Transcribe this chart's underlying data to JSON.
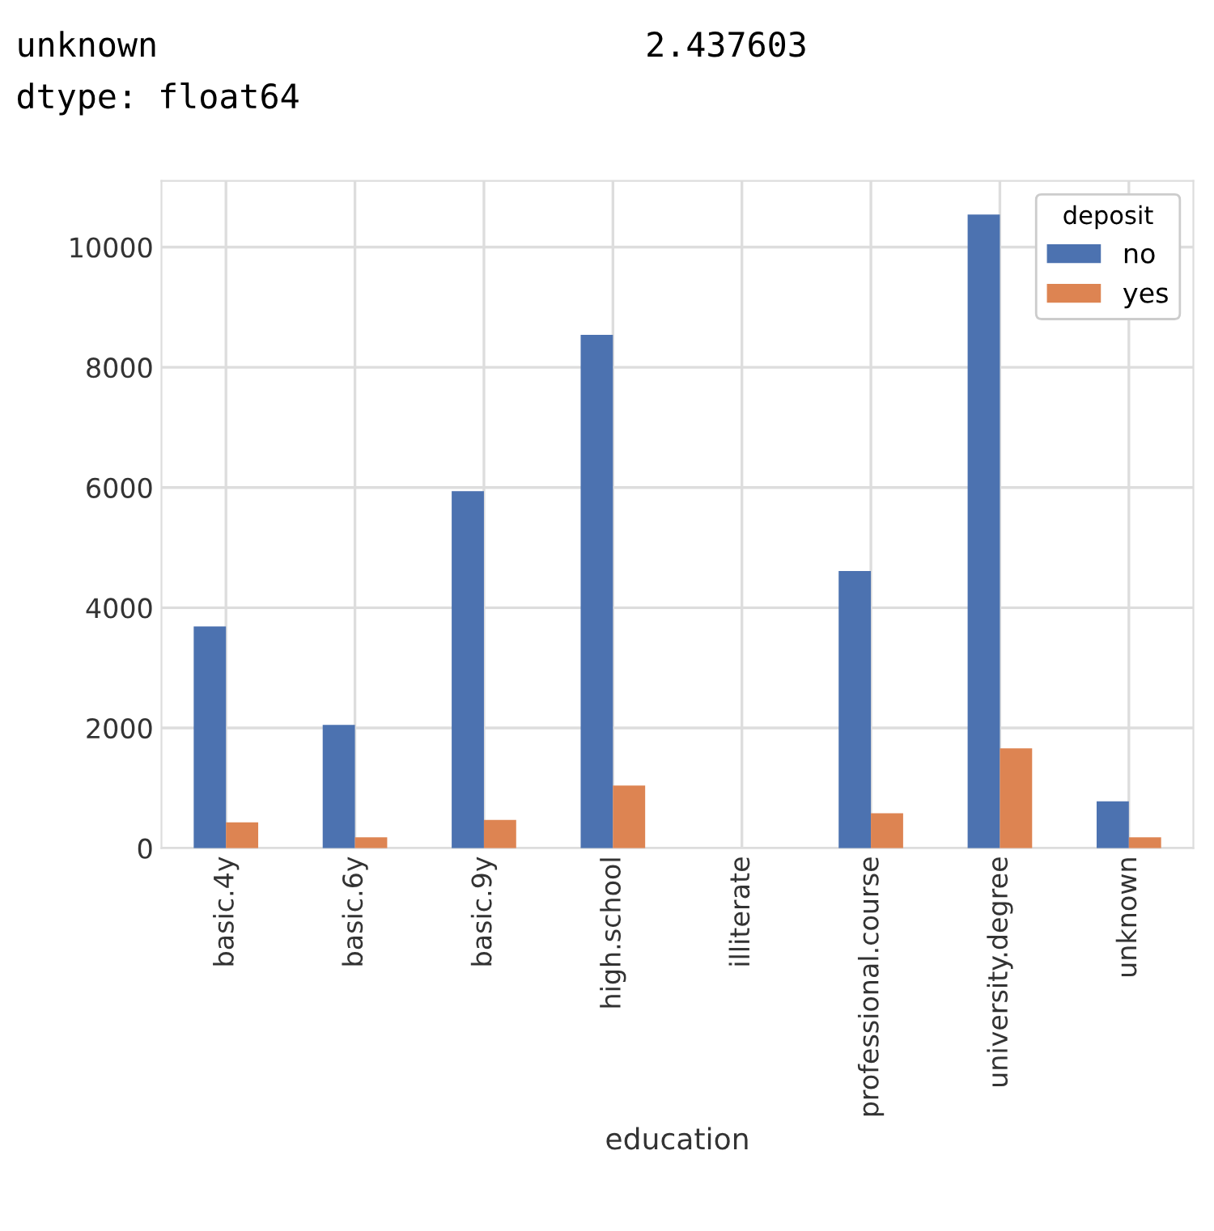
{
  "chart_data": {
    "type": "bar",
    "xlabel": "education",
    "legend_title": "deposit",
    "categories": [
      "basic.4y",
      "basic.6y",
      "basic.9y",
      "high.school",
      "illiterate",
      "professional.course",
      "university.degree",
      "unknown"
    ],
    "series": [
      {
        "name": "no",
        "color": "#4c72b0",
        "values": [
          3690,
          2050,
          5940,
          8540,
          null,
          4610,
          10540,
          780
        ]
      },
      {
        "name": "yes",
        "color": "#dd8452",
        "values": [
          430,
          180,
          470,
          1040,
          null,
          580,
          1660,
          180
        ]
      }
    ],
    "ylim": [
      0,
      11100
    ],
    "yticks": [
      0,
      2000,
      4000,
      6000,
      8000,
      10000
    ],
    "grid": true,
    "legend": "top right",
    "annotations": [
      "unknown                        2.437603",
      "dtype: float64"
    ]
  }
}
